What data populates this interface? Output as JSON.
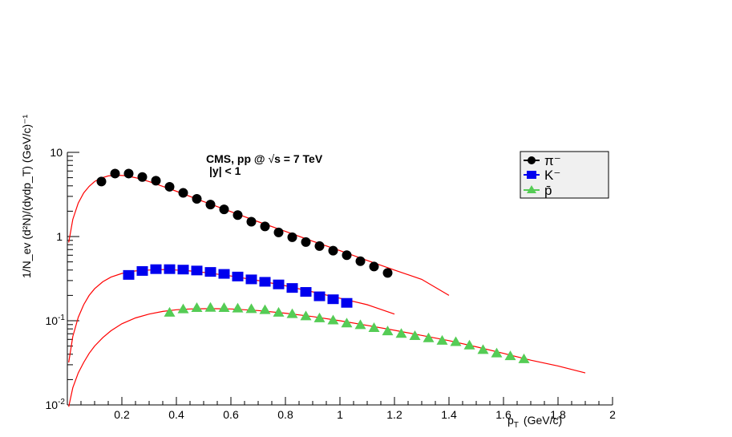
{
  "chart_data": {
    "type": "scatter",
    "xlabel_main": "p",
    "xlabel_sub": "T",
    "xlabel_unit": "(GeV/c)",
    "ylabel": "1/N_ev (d²N)/(dydp_T) (GeV/c)⁻¹",
    "xlim": [
      0,
      2
    ],
    "ylim": [
      0.01,
      10
    ],
    "y_scale": "log",
    "x_tick_labels": [
      "0.2",
      "0.4",
      "0.6",
      "0.8",
      "1",
      "1.2",
      "1.4",
      "1.6",
      "1.8",
      "2"
    ],
    "x_tick_values": [
      0.2,
      0.4,
      0.6,
      0.8,
      1.0,
      1.2,
      1.4,
      1.6,
      1.8,
      2.0
    ],
    "y_tick_values": [
      0.01,
      0.1,
      1,
      10
    ],
    "y_tick_labels": [
      {
        "base": "10",
        "exp": "-2"
      },
      {
        "base": "10",
        "exp": "-1"
      },
      {
        "base": "1",
        "exp": ""
      },
      {
        "base": "10",
        "exp": ""
      }
    ],
    "annotations": {
      "line1_prefix": "CMS, pp @",
      "line1_root": "√",
      "line1_suffix": "s = 7 TeV",
      "line2": "|y| < 1"
    },
    "legend_position": "top-right",
    "series": [
      {
        "name": "π⁻",
        "color": "#000000",
        "marker": "circle",
        "x": [
          0.125,
          0.175,
          0.225,
          0.275,
          0.325,
          0.375,
          0.425,
          0.475,
          0.525,
          0.575,
          0.625,
          0.675,
          0.725,
          0.775,
          0.825,
          0.875,
          0.925,
          0.975,
          1.025,
          1.075,
          1.125,
          1.175
        ],
        "y": [
          4.5,
          5.6,
          5.6,
          5.1,
          4.6,
          3.9,
          3.3,
          2.8,
          2.4,
          2.1,
          1.8,
          1.5,
          1.32,
          1.12,
          0.98,
          0.86,
          0.77,
          0.68,
          0.6,
          0.51,
          0.44,
          0.37
        ]
      },
      {
        "name": "K⁻",
        "color": "#0000ee",
        "marker": "square",
        "x": [
          0.225,
          0.275,
          0.325,
          0.375,
          0.425,
          0.475,
          0.525,
          0.575,
          0.625,
          0.675,
          0.725,
          0.775,
          0.825,
          0.875,
          0.925,
          0.975,
          1.025
        ],
        "y": [
          0.35,
          0.39,
          0.41,
          0.41,
          0.405,
          0.395,
          0.38,
          0.36,
          0.335,
          0.31,
          0.29,
          0.27,
          0.245,
          0.22,
          0.195,
          0.18,
          0.163
        ]
      },
      {
        "name": "p̄",
        "color": "#55cc55",
        "marker": "triangle",
        "x": [
          0.375,
          0.425,
          0.475,
          0.525,
          0.575,
          0.625,
          0.675,
          0.725,
          0.775,
          0.825,
          0.875,
          0.925,
          0.975,
          1.025,
          1.075,
          1.125,
          1.175,
          1.225,
          1.275,
          1.325,
          1.375,
          1.425,
          1.475,
          1.525,
          1.575,
          1.625,
          1.675
        ],
        "y": [
          0.125,
          0.137,
          0.142,
          0.143,
          0.142,
          0.14,
          0.138,
          0.134,
          0.125,
          0.12,
          0.113,
          0.107,
          0.101,
          0.093,
          0.089,
          0.082,
          0.075,
          0.07,
          0.066,
          0.062,
          0.058,
          0.056,
          0.051,
          0.045,
          0.041,
          0.038,
          0.035
        ]
      }
    ],
    "fits": [
      {
        "color": "#ff0000",
        "x": [
          0.005,
          0.02,
          0.04,
          0.06,
          0.08,
          0.1,
          0.12,
          0.15,
          0.18,
          0.21,
          0.25,
          0.3,
          0.35,
          0.4,
          0.5,
          0.6,
          0.7,
          0.8,
          0.9,
          1.0,
          1.1,
          1.2,
          1.3,
          1.4
        ],
        "y": [
          0.85,
          1.6,
          2.5,
          3.3,
          3.95,
          4.5,
          4.9,
          5.25,
          5.35,
          5.3,
          5.0,
          4.5,
          3.95,
          3.45,
          2.6,
          1.98,
          1.5,
          1.15,
          0.88,
          0.68,
          0.52,
          0.4,
          0.31,
          0.2
        ]
      },
      {
        "color": "#ff0000",
        "x": [
          0.005,
          0.02,
          0.04,
          0.06,
          0.08,
          0.1,
          0.13,
          0.16,
          0.2,
          0.25,
          0.3,
          0.35,
          0.4,
          0.45,
          0.5,
          0.6,
          0.7,
          0.8,
          0.9,
          1.0,
          1.1,
          1.2
        ],
        "y": [
          0.032,
          0.065,
          0.11,
          0.155,
          0.2,
          0.24,
          0.29,
          0.33,
          0.365,
          0.39,
          0.4,
          0.405,
          0.4,
          0.39,
          0.375,
          0.34,
          0.3,
          0.26,
          0.22,
          0.185,
          0.155,
          0.12
        ]
      },
      {
        "color": "#ff0000",
        "x": [
          0.005,
          0.02,
          0.04,
          0.06,
          0.08,
          0.1,
          0.13,
          0.16,
          0.2,
          0.25,
          0.3,
          0.35,
          0.4,
          0.45,
          0.5,
          0.55,
          0.6,
          0.7,
          0.8,
          0.9,
          1.0,
          1.1,
          1.2,
          1.3,
          1.4,
          1.5,
          1.6,
          1.7,
          1.8,
          1.9
        ],
        "y": [
          0.0095,
          0.016,
          0.024,
          0.032,
          0.041,
          0.05,
          0.063,
          0.076,
          0.092,
          0.108,
          0.12,
          0.129,
          0.135,
          0.138,
          0.139,
          0.139,
          0.138,
          0.132,
          0.123,
          0.112,
          0.1,
          0.088,
          0.077,
          0.067,
          0.058,
          0.049,
          0.041,
          0.034,
          0.029,
          0.024
        ]
      }
    ]
  }
}
